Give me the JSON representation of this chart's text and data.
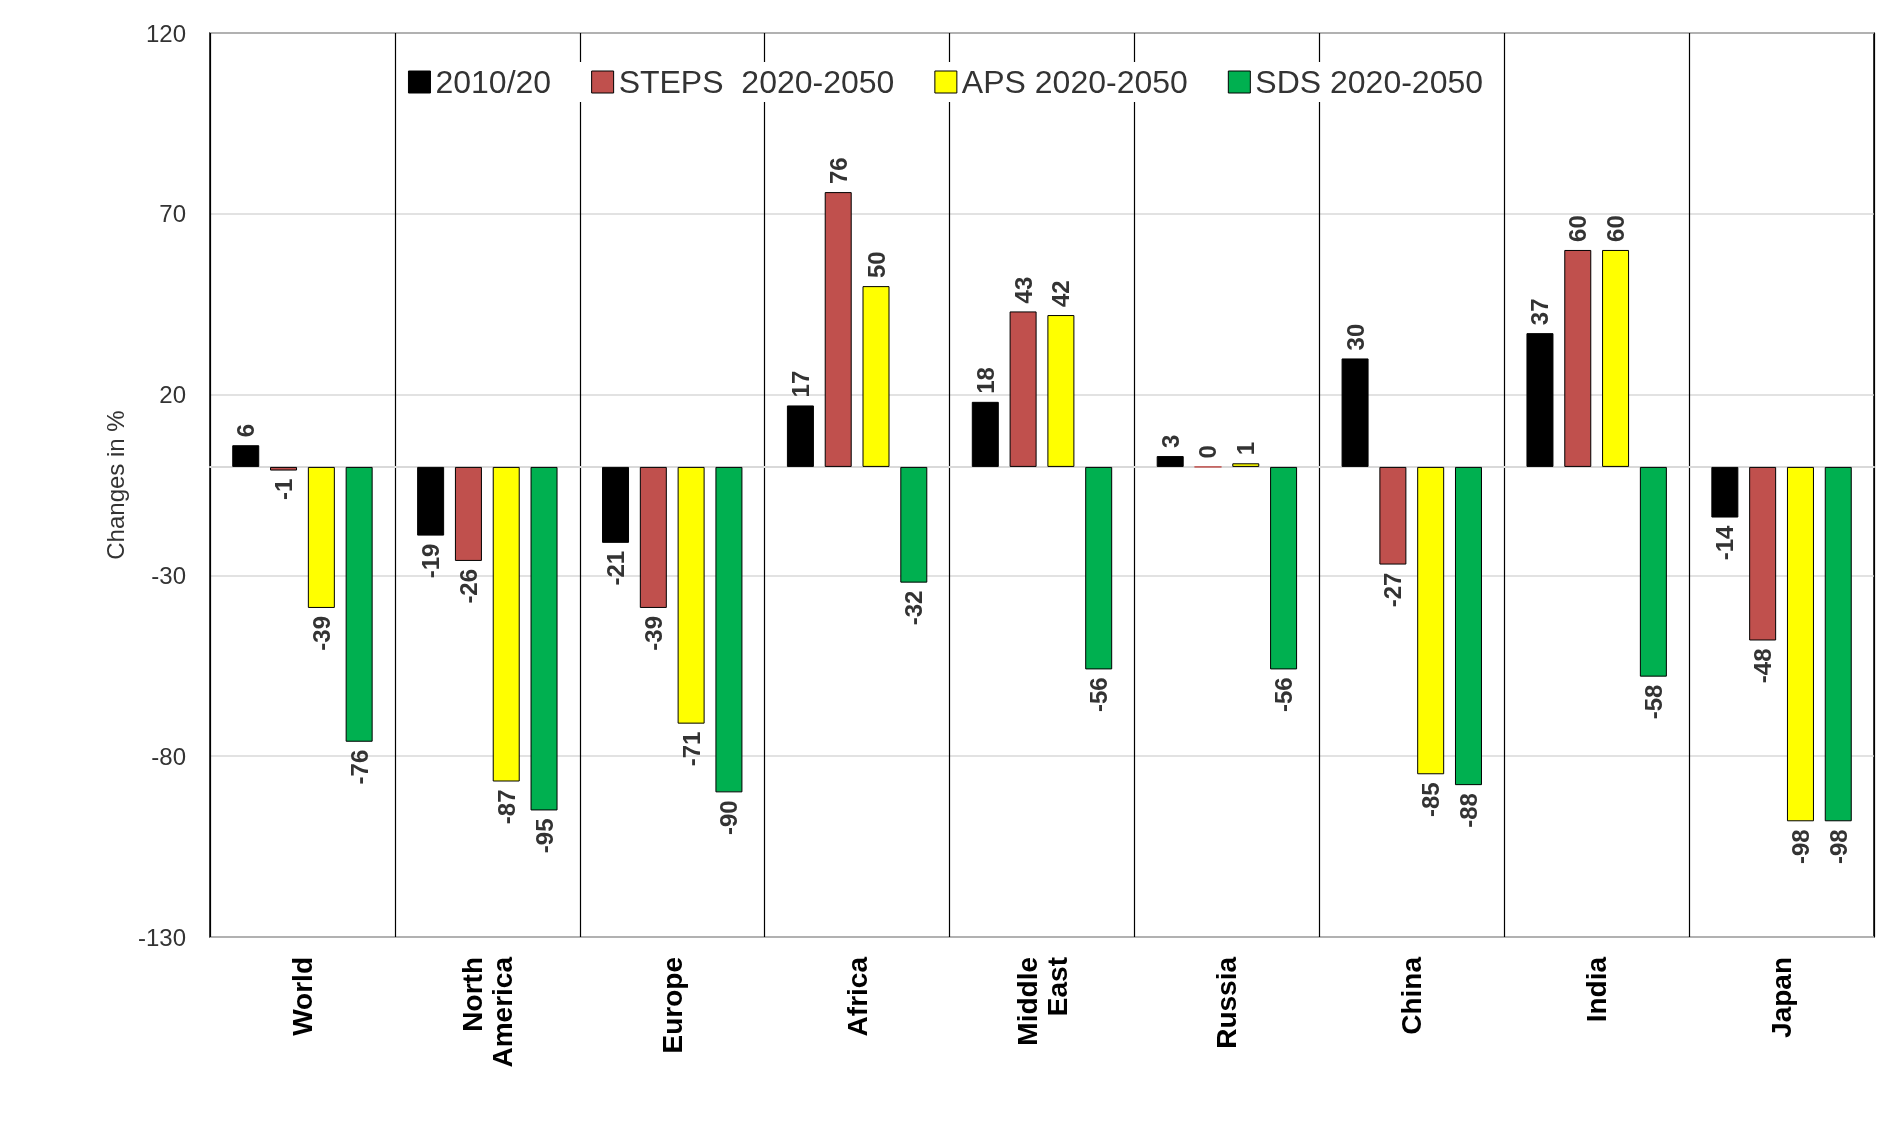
{
  "chart_data": {
    "type": "bar",
    "ylabel": "Changes in %",
    "categories": [
      "World",
      "North America",
      "Europe",
      "Africa",
      "Middle East",
      "Russia",
      "China",
      "India",
      "Japan"
    ],
    "series": [
      {
        "name": "2010/20",
        "color": "#000000",
        "values": [
          6,
          -19,
          -21,
          17,
          18,
          3,
          30,
          37,
          -14
        ]
      },
      {
        "name": "STEPS  2020-2050",
        "color": "#c0504d",
        "values": [
          -1,
          -26,
          -39,
          76,
          43,
          0,
          -27,
          60,
          -48
        ]
      },
      {
        "name": "APS 2020-2050",
        "color": "#ffff00",
        "values": [
          -39,
          -87,
          -71,
          50,
          42,
          1,
          -85,
          60,
          -98
        ]
      },
      {
        "name": "SDS 2020-2050",
        "color": "#00b050",
        "values": [
          -76,
          -95,
          -90,
          -32,
          -56,
          -56,
          -88,
          -58,
          -98
        ]
      }
    ],
    "ylim": [
      -130,
      120
    ],
    "yticks": [
      -130,
      -80,
      -30,
      20,
      70,
      120
    ],
    "grid": true,
    "legend": "top",
    "data_labels": true
  }
}
